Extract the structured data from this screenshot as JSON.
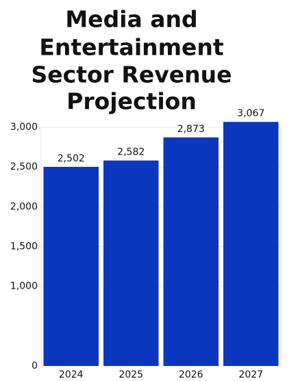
{
  "chart_data": {
    "type": "bar",
    "title": [
      "Media and",
      "Entertainment",
      "Sector Revenue",
      "Projection"
    ],
    "categories": [
      "2024",
      "2025",
      "2026",
      "2027"
    ],
    "values": [
      2502,
      2582,
      2873,
      3067
    ],
    "value_labels": [
      "2,502",
      "2,582",
      "2,873",
      "3,067"
    ],
    "color": "#0b37bf",
    "ylim": [
      0,
      3000
    ],
    "yticks": [
      0,
      {
        "value": 1000,
        "label": "1,000"
      },
      {
        "value": 1500,
        "label": "1,500"
      },
      {
        "value": 2000,
        "label": "2,000"
      },
      {
        "value": 2500,
        "label": "2,500"
      },
      {
        "value": 3000,
        "label": "3,000"
      }
    ],
    "grid": true
  }
}
